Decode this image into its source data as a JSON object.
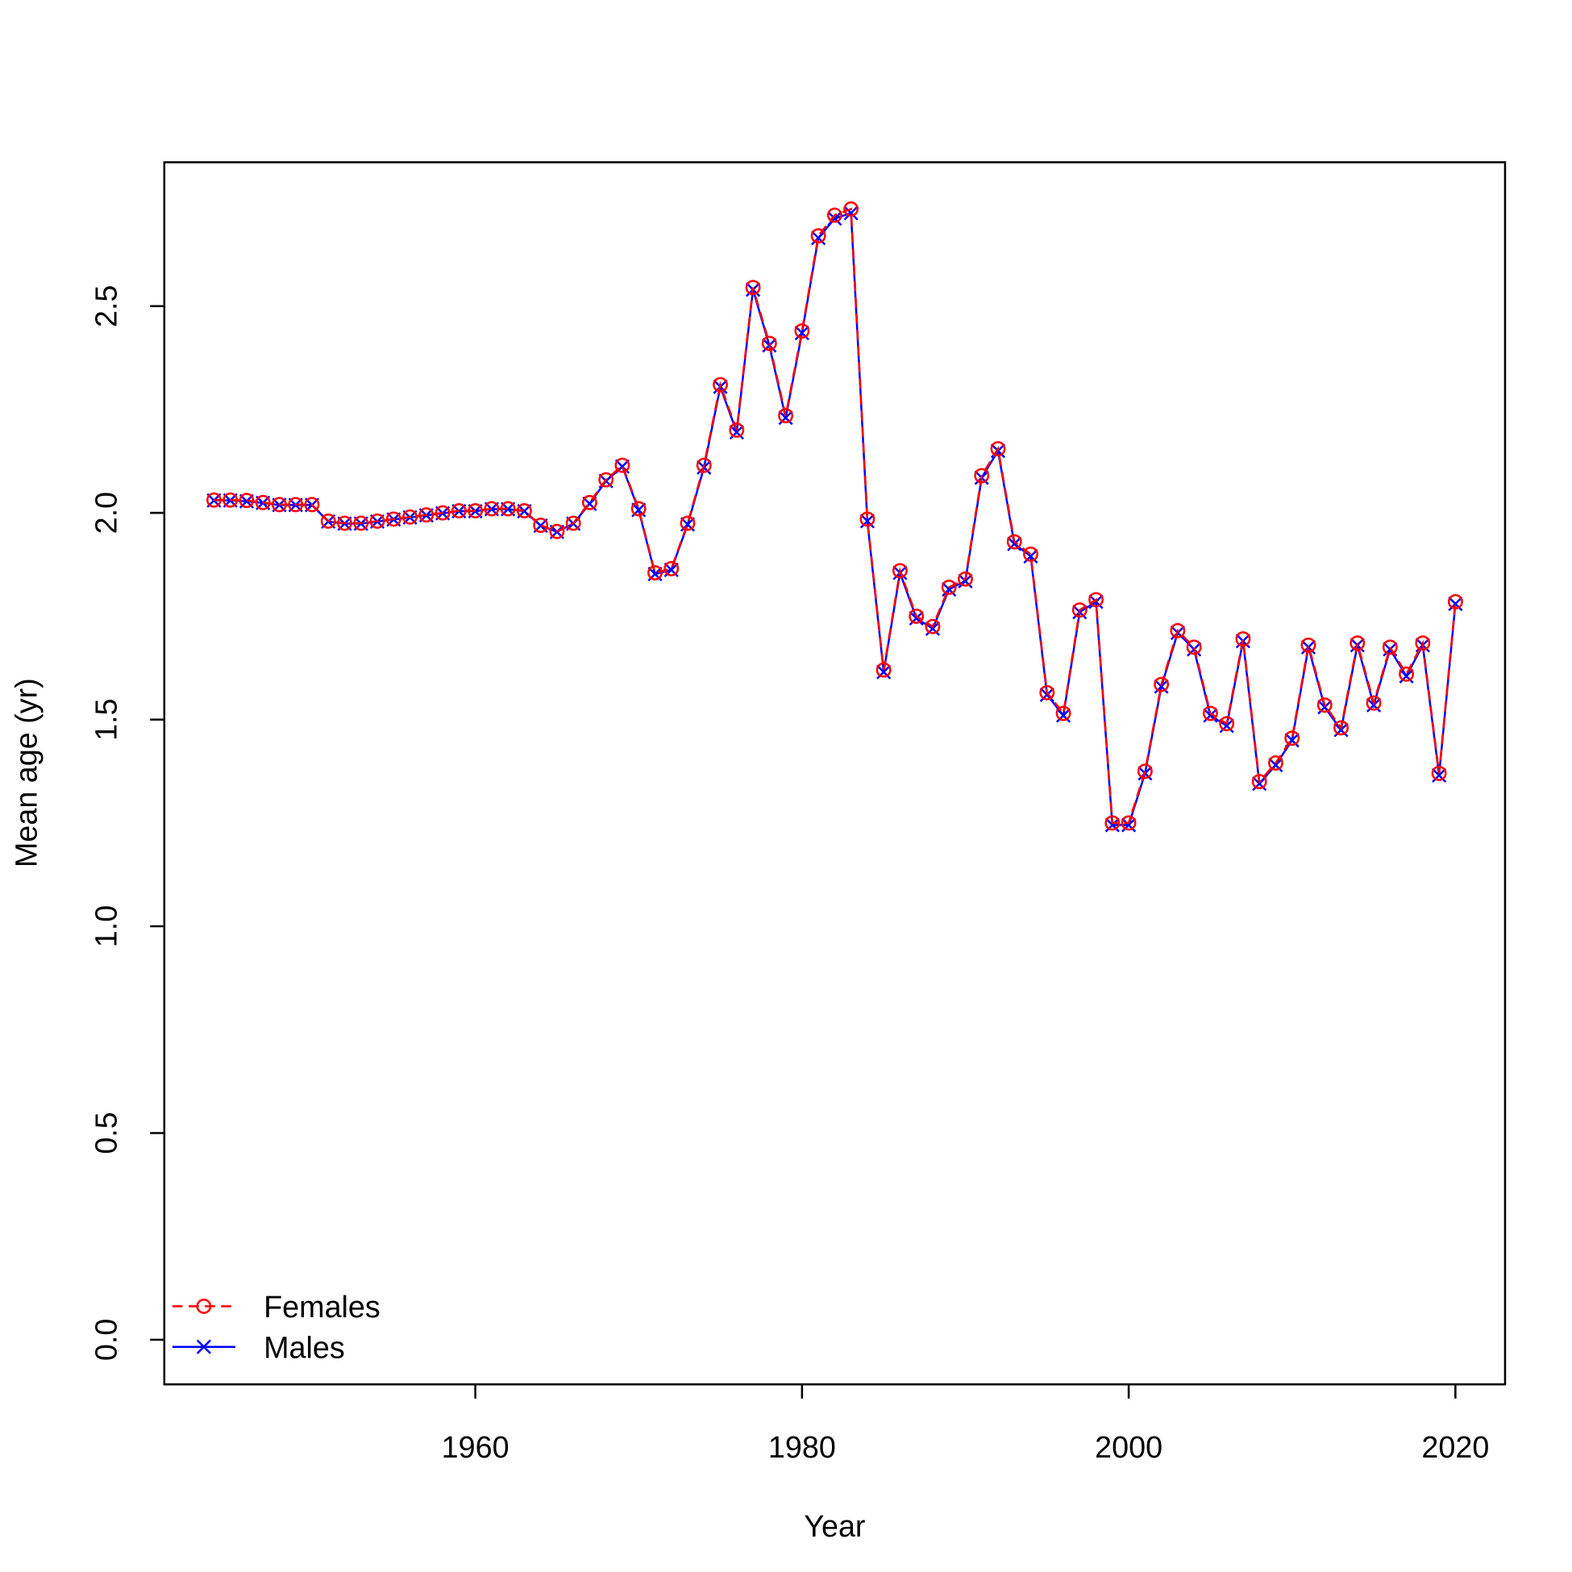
{
  "chart_data": {
    "type": "line",
    "xlabel": "Year",
    "ylabel": "Mean age (yr)",
    "x": [
      1944,
      1945,
      1946,
      1947,
      1948,
      1949,
      1950,
      1951,
      1952,
      1953,
      1954,
      1955,
      1956,
      1957,
      1958,
      1959,
      1960,
      1961,
      1962,
      1963,
      1964,
      1965,
      1966,
      1967,
      1968,
      1969,
      1970,
      1971,
      1972,
      1973,
      1974,
      1975,
      1976,
      1977,
      1978,
      1979,
      1980,
      1981,
      1982,
      1983,
      1984,
      1985,
      1986,
      1987,
      1988,
      1989,
      1990,
      1991,
      1992,
      1993,
      1994,
      1995,
      1996,
      1997,
      1998,
      1999,
      2000,
      2001,
      2002,
      2003,
      2004,
      2005,
      2006,
      2007,
      2008,
      2009,
      2010,
      2011,
      2012,
      2013,
      2014,
      2015,
      2016,
      2017,
      2018,
      2019,
      2020
    ],
    "series": [
      {
        "name": "Females",
        "color": "#ff0000",
        "line": "dashed",
        "marker": "circle",
        "values": [
          2.031,
          2.031,
          2.03,
          2.025,
          2.02,
          2.02,
          2.02,
          1.98,
          1.975,
          1.975,
          1.98,
          1.985,
          1.99,
          1.995,
          2.0,
          2.005,
          2.005,
          2.01,
          2.01,
          2.005,
          1.97,
          1.955,
          1.975,
          2.025,
          2.08,
          2.115,
          2.01,
          1.855,
          1.865,
          1.975,
          2.115,
          2.31,
          2.2,
          2.545,
          2.41,
          2.235,
          2.44,
          2.67,
          2.72,
          2.735,
          1.985,
          1.62,
          1.86,
          1.75,
          1.725,
          1.82,
          1.84,
          2.09,
          2.155,
          1.93,
          1.9,
          1.565,
          1.515,
          1.765,
          1.79,
          1.25,
          1.25,
          1.375,
          1.585,
          1.715,
          1.675,
          1.515,
          1.49,
          1.695,
          1.35,
          1.395,
          1.455,
          1.68,
          1.535,
          1.48,
          1.685,
          1.54,
          1.675,
          1.61,
          1.685,
          1.37,
          1.785
        ]
      },
      {
        "name": "Males",
        "color": "#0000ff",
        "line": "solid",
        "marker": "cross",
        "values": [
          2.03,
          2.03,
          2.028,
          2.024,
          2.019,
          2.019,
          2.019,
          1.979,
          1.974,
          1.974,
          1.979,
          1.984,
          1.989,
          1.994,
          1.999,
          2.004,
          2.004,
          2.009,
          2.009,
          2.004,
          1.969,
          1.954,
          1.974,
          2.022,
          2.077,
          2.112,
          2.007,
          1.852,
          1.862,
          1.972,
          2.11,
          2.305,
          2.195,
          2.54,
          2.405,
          2.23,
          2.435,
          2.665,
          2.712,
          2.725,
          1.98,
          1.615,
          1.855,
          1.745,
          1.72,
          1.815,
          1.835,
          2.085,
          2.15,
          1.925,
          1.895,
          1.56,
          1.51,
          1.76,
          1.785,
          1.245,
          1.245,
          1.37,
          1.58,
          1.71,
          1.67,
          1.51,
          1.485,
          1.69,
          1.345,
          1.39,
          1.45,
          1.675,
          1.53,
          1.475,
          1.68,
          1.535,
          1.67,
          1.605,
          1.68,
          1.365,
          1.78
        ]
      }
    ],
    "xlim": [
      1940.96,
      2023.04
    ],
    "xticks": [
      1960,
      1980,
      2000,
      2020
    ],
    "ylim": [
      -0.108,
      2.848
    ],
    "yticks": [
      {
        "value": 0,
        "label": "0.0"
      },
      {
        "value": 0.5,
        "label": "0.5"
      },
      {
        "value": 1,
        "label": "1.0"
      },
      {
        "value": 1.5,
        "label": "1.5"
      },
      {
        "value": 2,
        "label": "2.0"
      },
      {
        "value": 2.5,
        "label": "2.5"
      }
    ],
    "legend": "bottom-left"
  }
}
